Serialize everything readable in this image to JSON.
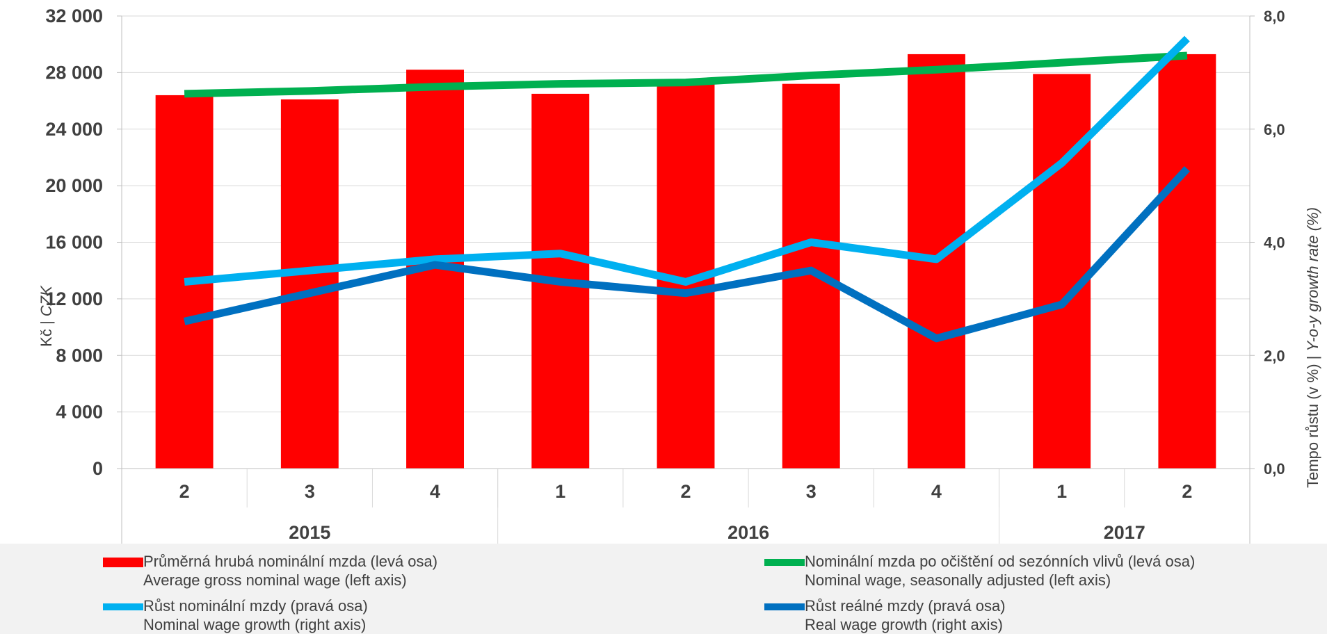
{
  "chart_data": {
    "type": "bar+line",
    "categories": [
      "2",
      "3",
      "4",
      "1",
      "2",
      "3",
      "4",
      "1",
      "2"
    ],
    "years": [
      {
        "label": "2015",
        "span": [
          0,
          2
        ]
      },
      {
        "label": "2016",
        "span": [
          3,
          6
        ]
      },
      {
        "label": "2017",
        "span": [
          7,
          8
        ]
      }
    ],
    "left_axis": {
      "title_prefix": "Kč | ",
      "title_italic": "CZK",
      "ylim": [
        0,
        32000
      ],
      "ticks": [
        "0",
        "4 000",
        "8 000",
        "12 000",
        "16 000",
        "20 000",
        "24 000",
        "28 000",
        "32 000"
      ],
      "tick_values": [
        0,
        4000,
        8000,
        12000,
        16000,
        20000,
        24000,
        28000,
        32000
      ]
    },
    "right_axis": {
      "title_prefix": "Tempo růstu (v %) | ",
      "title_italic": "Y-o-y growth rate (%)",
      "ylim": [
        0,
        8
      ],
      "ticks": [
        "0,0",
        "2,0",
        "4,0",
        "6,0",
        "8,0"
      ],
      "tick_values": [
        0,
        2,
        4,
        6,
        8
      ]
    },
    "series": [
      {
        "name": "Průměrná hrubá nominální mzda (levá osa)",
        "name_en": "Average gross nominal wage (left axis)",
        "kind": "bar",
        "axis": "left",
        "color": "#ff0000",
        "values": [
          26400,
          26100,
          28200,
          26500,
          27300,
          27200,
          29300,
          27900,
          29300
        ]
      },
      {
        "name": "Nominální mzda po očištění od sezónních vlivů (levá osa)",
        "name_en": "Nominal wage, seasonally adjusted (left axis)",
        "kind": "line",
        "axis": "left",
        "color": "#00b050",
        "values": [
          26500,
          26700,
          27000,
          27200,
          27300,
          27800,
          28200,
          28700,
          29200
        ]
      },
      {
        "name": "Růst nominální mzdy (pravá osa)",
        "name_en": "Nominal wage growth (right axis)",
        "kind": "line",
        "axis": "right",
        "color": "#00b0f0",
        "values": [
          3.3,
          3.5,
          3.7,
          3.8,
          3.3,
          4.0,
          3.7,
          5.4,
          7.6
        ]
      },
      {
        "name": "Růst reálné mzdy (pravá osa)",
        "name_en": "Real wage growth (right axis)",
        "kind": "line",
        "axis": "right",
        "color": "#0070c0",
        "values": [
          2.6,
          3.1,
          3.6,
          3.3,
          3.1,
          3.5,
          2.3,
          2.9,
          5.3
        ]
      }
    ],
    "grid": true
  }
}
